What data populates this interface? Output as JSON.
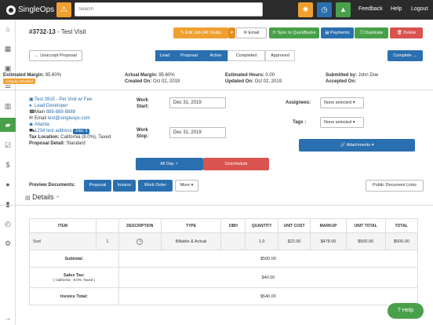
{
  "topbar": {
    "logo_text": "SingleOps",
    "search_placeholder": "Search",
    "feedback": "Feedback",
    "help": "Help",
    "logout": "Logout"
  },
  "header": {
    "job_number": "#3732-13",
    "job_name": "- Test Visit",
    "edit_job": "✎ Edit Job (All Visits)",
    "email": "✉ Email",
    "sync": "⟳ Sync to QuickBooks",
    "payments": "▤ Payments",
    "duplicate": "❐ Duplicate",
    "delete": "🗑 Delete"
  },
  "workflow": {
    "unaccept": "← Unaccept Proposal",
    "stages": [
      "Lead",
      "Proposal",
      "Active",
      "Completed",
      "Approved"
    ],
    "complete": "Complete →"
  },
  "summary": {
    "est_margin_label": "Estimated Margin:",
    "est_margin_value": "95.60%",
    "autopay": "Autopay Disabled",
    "act_margin_label": "Actual Margin:",
    "act_margin_value": "95.60%",
    "created_label": "Created On:",
    "created_value": "Oct 02, 2019",
    "est_hours_label": "Estimated Hours:",
    "est_hours_value": "0.00",
    "updated_label": "Updated On:",
    "updated_value": "Oct 02, 2019",
    "submitted_label": "Submitted by:",
    "submitted_value": "John Doe",
    "accepted_label": "Accepted On:",
    "accepted_value": ""
  },
  "contact": {
    "customer": "Test 3915 - Per Visit w/ Fee",
    "source": "Lead Developer",
    "main_label": "Main",
    "main_phone": "888-888-8888",
    "email_label": "Email",
    "email": "test@singleops.com",
    "city": "Atlanta",
    "address": "1234 test address",
    "jobs_badge": "Jobs: 5",
    "tax_label": "Tax Location:",
    "tax_value": "California (8.0%), Taxed",
    "proposal_label": "Proposal Detail:",
    "proposal_value": "Standard"
  },
  "schedule": {
    "work_start_label": "Work Start:",
    "work_start_value": "Dec 31, 2019",
    "work_stop_label": "Work Stop:",
    "work_stop_value": "Dec 31, 2019",
    "all_day": "All Day ✓",
    "unschedule": "Unschedule"
  },
  "assign": {
    "assignees_label": "Assignees:",
    "assignees_value": "None selected ▾",
    "tags_label": "Tags :",
    "tags_value": "None selected ▾",
    "attachments": "🔗 Attachments ▾"
  },
  "preview": {
    "label": "Preview Documents:",
    "proposal": "Proposal",
    "invoice": "Invoice",
    "work_order": "Work Order",
    "more": "More ▾",
    "public_links": "Public Document Links"
  },
  "details": {
    "heading": "Details",
    "columns": [
      "ITEM",
      "",
      "DESCRIPTION",
      "TYPE",
      "DBH",
      "QUANTITY",
      "UNIT COST",
      "MARKUP",
      "UNIT TOTAL",
      "TOTAL"
    ],
    "row": {
      "item": "Sod",
      "num": "1",
      "type": "Billable & Actual",
      "dbh": "",
      "quantity": "1.0",
      "unit_cost": "$22.00",
      "markup": "$478.00",
      "unit_total": "$500.00",
      "total": "$500.00"
    },
    "subtotal_label": "Subtotal:",
    "subtotal_value": "$500.00",
    "salestax_label": "Sales Tax:",
    "salestax_sub": "( California - 8.0%, Taxed )",
    "salestax_value": "$40.00",
    "invoice_total_label": "Invoice Total:",
    "invoice_total_value": "$540.00"
  },
  "help_button": "Help"
}
